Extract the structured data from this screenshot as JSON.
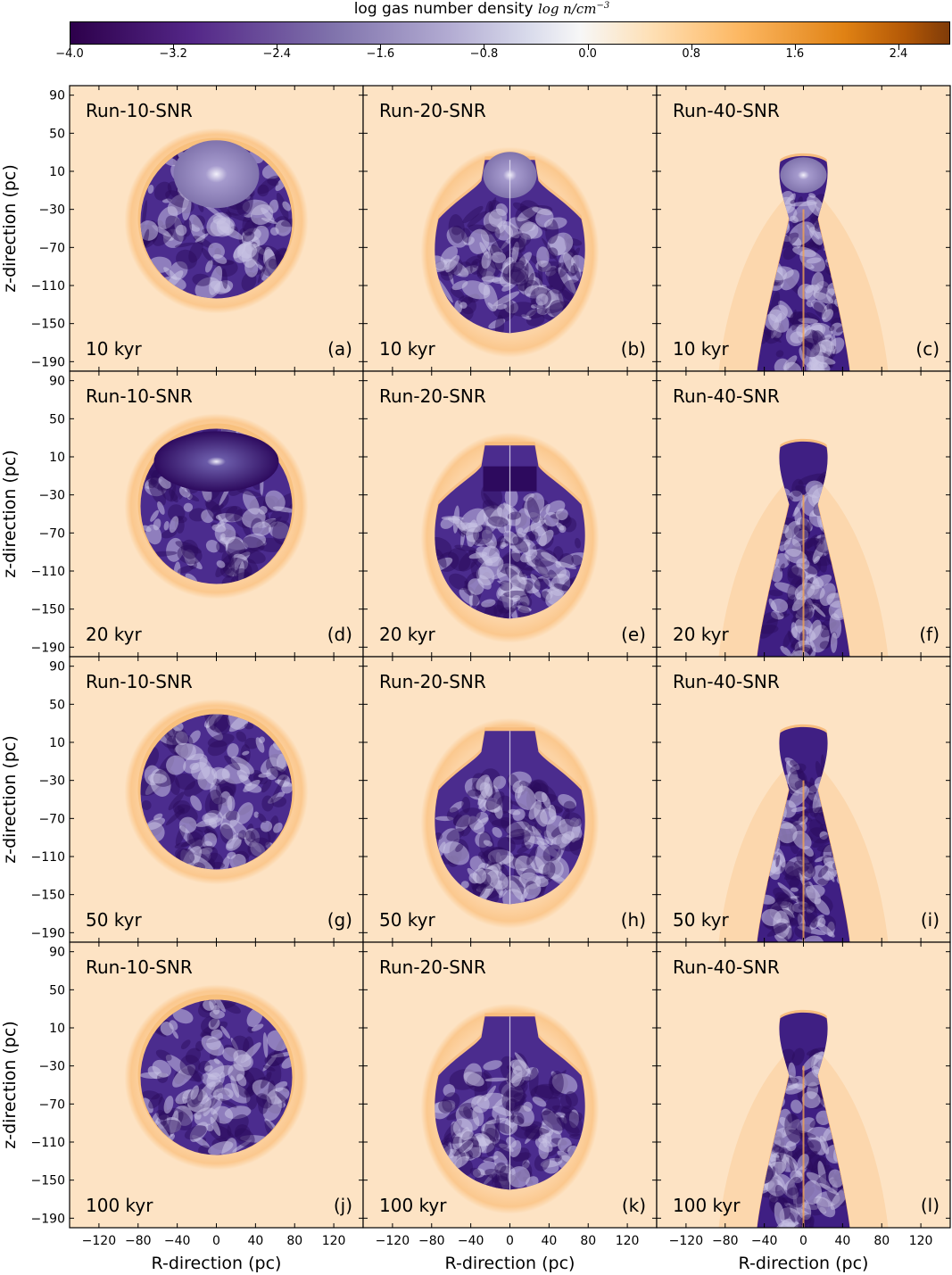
{
  "colorbar": {
    "title": "log gas number density",
    "title_math": "log n/cm",
    "title_exp": "−3",
    "ticks": [
      "−4.0",
      "−3.2",
      "−2.4",
      "−1.6",
      "−0.8",
      "0.0",
      "0.8",
      "1.6",
      "2.4"
    ],
    "tick_values": [
      -4.0,
      -3.2,
      -2.4,
      -1.6,
      -0.8,
      0.0,
      0.8,
      1.6,
      2.4
    ],
    "range": [
      -4.0,
      2.8
    ],
    "colors": {
      "low": "#2d004b",
      "mid": "#f7f7f7",
      "high": "#7f3b08",
      "ambient": "#fde3c4"
    }
  },
  "axes": {
    "ylabel": "z-direction (pc)",
    "xlabel": "R-direction (pc)",
    "yticks": [
      "90",
      "50",
      "10",
      "−30",
      "−70",
      "−110",
      "−150",
      "−190"
    ],
    "ytick_values": [
      90,
      50,
      10,
      -30,
      -70,
      -110,
      -150,
      -190
    ],
    "xticks": [
      "−120",
      "−80",
      "−40",
      "0",
      "40",
      "80",
      "120"
    ],
    "xtick_values": [
      -120,
      -80,
      -40,
      0,
      40,
      80,
      120
    ],
    "xlim": [
      -150,
      150
    ],
    "ylim": [
      -200,
      100
    ]
  },
  "chart_data": {
    "type": "heatmap",
    "layout": "4 rows × 3 columns",
    "panels": [
      {
        "run": "Run-10-SNR",
        "time": "10 kyr",
        "label": "(a)"
      },
      {
        "run": "Run-20-SNR",
        "time": "10 kyr",
        "label": "(b)"
      },
      {
        "run": "Run-40-SNR",
        "time": "10 kyr",
        "label": "(c)"
      },
      {
        "run": "Run-10-SNR",
        "time": "20 kyr",
        "label": "(d)"
      },
      {
        "run": "Run-20-SNR",
        "time": "20 kyr",
        "label": "(e)"
      },
      {
        "run": "Run-40-SNR",
        "time": "20 kyr",
        "label": "(f)"
      },
      {
        "run": "Run-10-SNR",
        "time": "50 kyr",
        "label": "(g)"
      },
      {
        "run": "Run-20-SNR",
        "time": "50 kyr",
        "label": "(h)"
      },
      {
        "run": "Run-40-SNR",
        "time": "50 kyr",
        "label": "(i)"
      },
      {
        "run": "Run-10-SNR",
        "time": "100 kyr",
        "label": "(j)"
      },
      {
        "run": "Run-20-SNR",
        "time": "100 kyr",
        "label": "(k)"
      },
      {
        "run": "Run-40-SNR",
        "time": "100 kyr",
        "label": "(l)"
      }
    ]
  }
}
